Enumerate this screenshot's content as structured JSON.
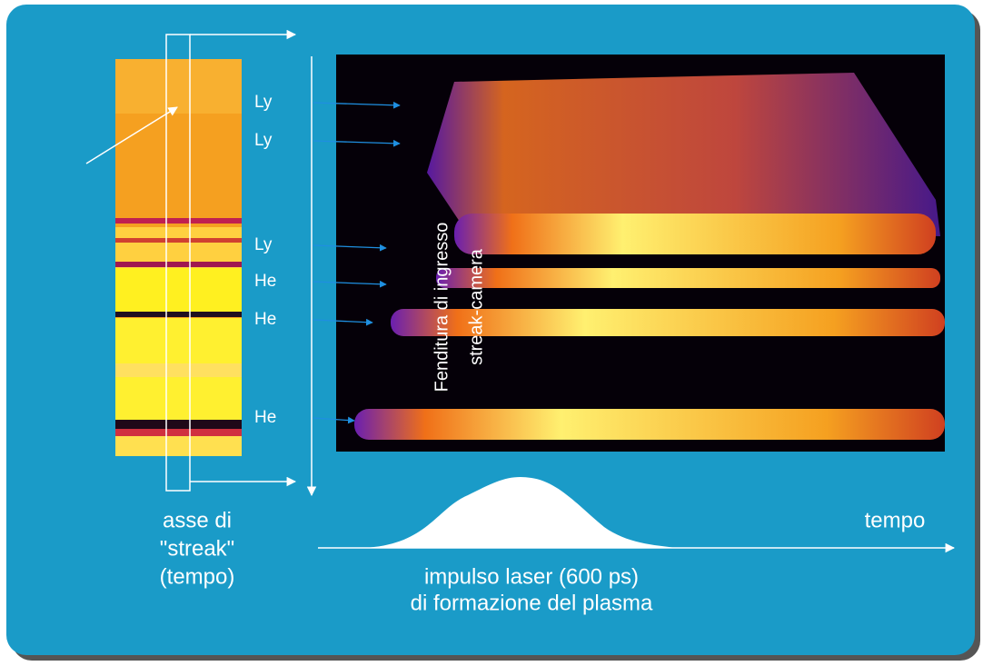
{
  "lines": [
    {
      "label": "Ly"
    },
    {
      "label": "Ly"
    },
    {
      "label": "Ly"
    },
    {
      "label": "He"
    },
    {
      "label": "He"
    },
    {
      "label": "He"
    }
  ],
  "slit_label": [
    "Fenditura di ingresso",
    "streak-camera"
  ],
  "axis_label": [
    "asse di",
    "\"streak\"",
    "(tempo)"
  ],
  "time_label": "tempo",
  "pulse_label": [
    "impulso laser (600 ps)",
    "di formazione del plasma"
  ]
}
